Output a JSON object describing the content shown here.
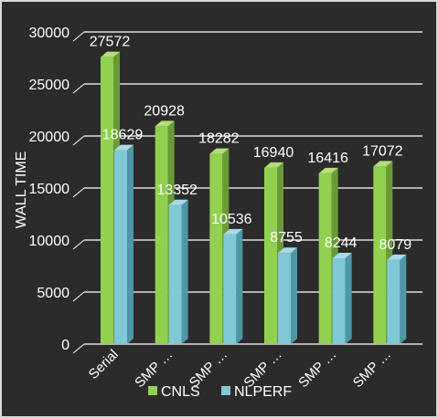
{
  "chart_data": {
    "type": "bar",
    "style": "3d-clustered-column",
    "categories": [
      "Serial",
      "SMP …",
      "SMP …",
      "SMP …",
      "SMP …",
      "SMP …"
    ],
    "series": [
      {
        "name": "CNLS",
        "values": [
          27572,
          20928,
          18282,
          16940,
          16416,
          17072
        ]
      },
      {
        "name": "NLPERF",
        "values": [
          18629,
          13352,
          10536,
          8755,
          8244,
          8079
        ]
      }
    ],
    "title": "",
    "xlabel": "",
    "ylabel": "WALL TIME",
    "ylim": [
      0,
      30000
    ],
    "yticks": [
      0,
      5000,
      10000,
      15000,
      20000,
      25000,
      30000
    ],
    "grid": true,
    "legend": "bottom",
    "data_labels": true
  },
  "colors": {
    "background": "#2b2b2b",
    "cnls_front": "#92d050",
    "cnls_side": "#6a9a36",
    "cnls_top": "#b2e07a",
    "nlperf_front": "#7fc8d6",
    "nlperf_side": "#4f97a6",
    "nlperf_top": "#a8dbe5",
    "grid": "#ffffff",
    "text": "#ffffff"
  }
}
